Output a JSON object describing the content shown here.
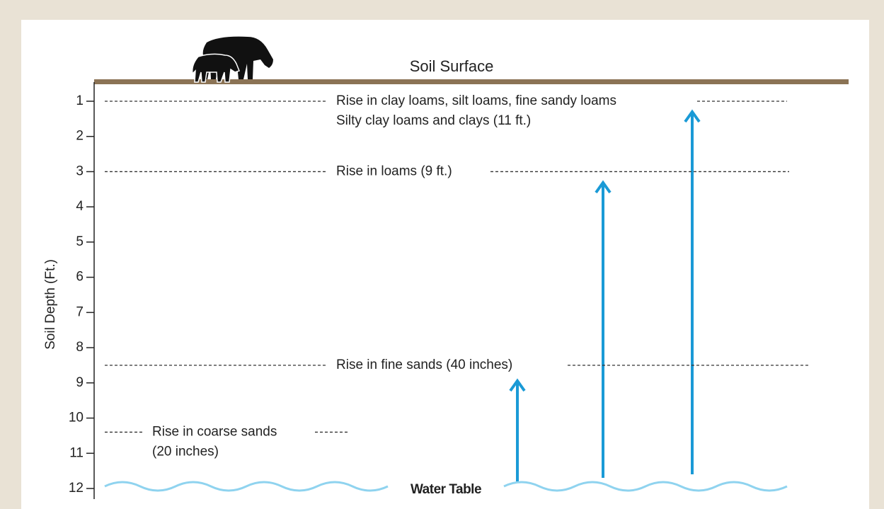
{
  "surface_label": "Soil Surface",
  "axis_label": "Soil Depth (Ft.)",
  "ticks": [
    1,
    2,
    3,
    4,
    5,
    6,
    7,
    8,
    9,
    10,
    11,
    12
  ],
  "levels": [
    {
      "depth": 1,
      "lines": [
        "Rise in clay loams, silt loams, fine sandy loams",
        "Silty clay loams and clays (11 ft.)"
      ]
    },
    {
      "depth": 3,
      "lines": [
        "Rise in loams (9 ft.)"
      ]
    },
    {
      "depth": 8.5,
      "lines": [
        "Rise in fine sands (40 inches)"
      ]
    },
    {
      "depth": 10.4,
      "lines": [
        "Rise in coarse sands",
        "(20 inches)"
      ]
    }
  ],
  "water_table_label": "Water Table"
}
